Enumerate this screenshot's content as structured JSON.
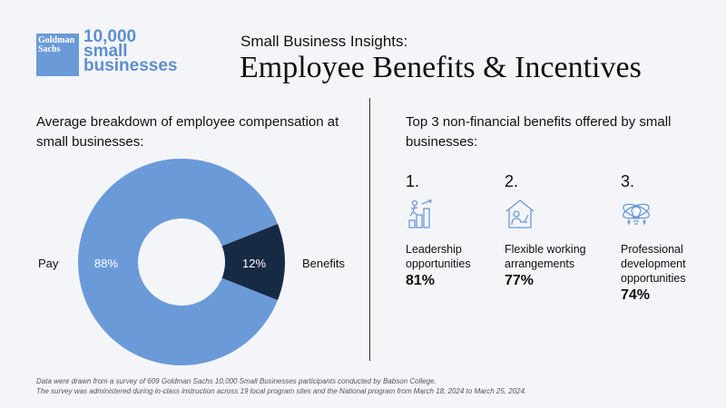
{
  "logo": {
    "brand": "Goldman Sachs",
    "program": "10,000 small businesses"
  },
  "header": {
    "subtitle": "Small Business Insights:",
    "title": "Employee Benefits & Incentives"
  },
  "left": {
    "heading": "Average breakdown of employee compensation at small businesses:"
  },
  "right": {
    "heading": "Top 3 non-financial benefits offered by small businesses:",
    "benefits": [
      {
        "rank": "1.",
        "icon": "leadership-growth-icon",
        "label": "Leadership opportunities",
        "value": "81%"
      },
      {
        "rank": "2.",
        "icon": "home-work-icon",
        "label": "Flexible working arrangements",
        "value": "77%"
      },
      {
        "rank": "3.",
        "icon": "lightbulb-idea-icon",
        "label": "Professional development opportunities",
        "value": "74%"
      }
    ]
  },
  "chart_data": {
    "type": "pie",
    "donut": true,
    "categories": [
      "Pay",
      "Benefits"
    ],
    "values": [
      88,
      12
    ],
    "data_labels": [
      "88%",
      "12%"
    ],
    "colors": [
      "#6a9bd8",
      "#172a44"
    ]
  },
  "footer": {
    "line1": "Data were drawn from a survey of 609 Goldman Sachs 10,000 Small Businesses participants conducted by Babson College.",
    "line2": "The survey was administered during in-class instruction across 19 local program sites and the National program from March 18, 2024 to March 25, 2024."
  }
}
